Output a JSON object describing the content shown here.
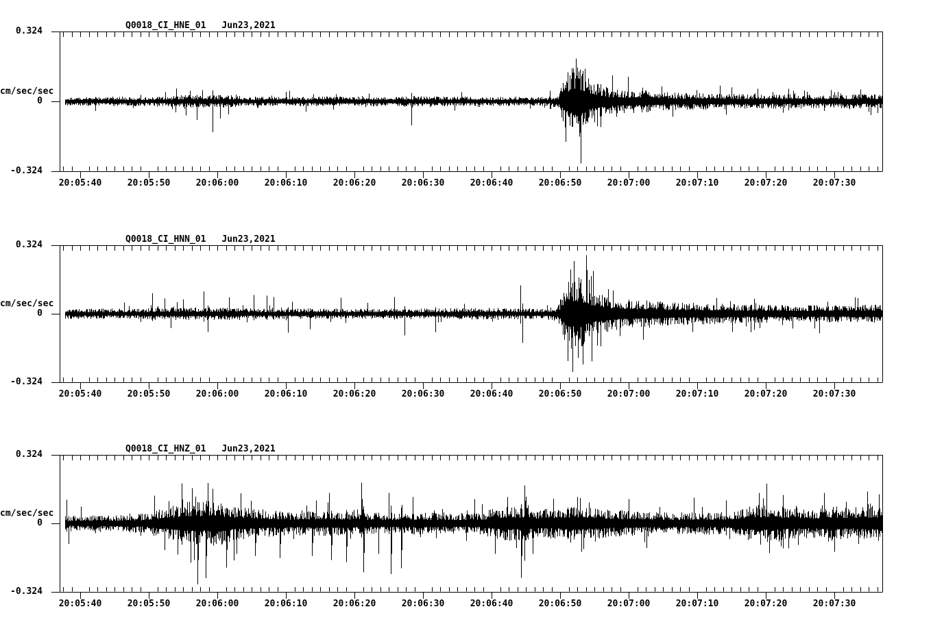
{
  "window": {
    "background": "#ffffff",
    "ink": "#000000"
  },
  "axes": {
    "y": {
      "top_label": "0.324",
      "zero_label": "0",
      "bottom_label": "-0.324",
      "units_label": "cm/sec/sec",
      "limits": [
        -0.324,
        0.324
      ]
    },
    "x": {
      "tick_labels": [
        "20:05:40",
        "20:05:50",
        "20:06:00",
        "20:06:10",
        "20:06:20",
        "20:06:30",
        "20:06:40",
        "20:06:50",
        "20:07:00",
        "20:07:10",
        "20:07:20",
        "20:07:30"
      ],
      "start_time": "20:05:37",
      "end_time": "20:07:37",
      "major_tick_interval_seconds": 10,
      "minor_ticks_per_major": 8
    }
  },
  "chart_data": [
    {
      "type": "line",
      "kind": "seismogram-trace",
      "title_station": "Q0018_CI_HNE_01",
      "title_date": "Jun23,2021",
      "channel": "HNE",
      "units": "cm/sec/sec",
      "ylim": [
        -0.324,
        0.324
      ],
      "x_start_time": "20:05:37",
      "x_end_time": "20:07:37",
      "noise_envelope": [
        [
          0,
          0.022
        ],
        [
          15,
          0.023
        ],
        [
          17,
          0.03
        ],
        [
          25,
          0.03
        ],
        [
          27,
          0.023
        ],
        [
          49,
          0.023
        ],
        [
          52,
          0.027
        ],
        [
          54,
          0.023
        ],
        [
          71,
          0.022
        ],
        [
          72.8,
          0.03
        ],
        [
          73.6,
          0.13
        ],
        [
          75.5,
          0.185
        ],
        [
          77,
          0.12
        ],
        [
          80,
          0.063
        ],
        [
          85,
          0.052
        ],
        [
          90,
          0.042
        ],
        [
          100,
          0.036
        ],
        [
          110,
          0.033
        ],
        [
          120,
          0.034
        ]
      ],
      "spikes": [
        [
          17.0,
          0.062
        ],
        [
          19.0,
          0.05
        ],
        [
          20.0,
          -0.088
        ],
        [
          22.3,
          -0.148
        ],
        [
          23.4,
          -0.082
        ],
        [
          24.6,
          -0.062
        ],
        [
          33.5,
          0.05
        ],
        [
          51.3,
          -0.115
        ],
        [
          75.3,
          0.205
        ],
        [
          75.8,
          -0.168
        ],
        [
          76.6,
          0.155
        ],
        [
          78.4,
          -0.12
        ],
        [
          87.8,
          0.072
        ],
        [
          96.3,
          0.075
        ],
        [
          101.8,
          0.06
        ],
        [
          107.0,
          0.05
        ]
      ]
    },
    {
      "type": "line",
      "kind": "seismogram-trace",
      "title_station": "Q0018_CI_HNN_01",
      "title_date": "Jun23,2021",
      "channel": "HNN",
      "units": "cm/sec/sec",
      "ylim": [
        -0.324,
        0.324
      ],
      "x_start_time": "20:05:37",
      "x_end_time": "20:07:37",
      "noise_envelope": [
        [
          0,
          0.025
        ],
        [
          12,
          0.026
        ],
        [
          14,
          0.031
        ],
        [
          26,
          0.031
        ],
        [
          28,
          0.026
        ],
        [
          54,
          0.026
        ],
        [
          58,
          0.028
        ],
        [
          66,
          0.028
        ],
        [
          70,
          0.027
        ],
        [
          72.6,
          0.032
        ],
        [
          73.6,
          0.14
        ],
        [
          75.3,
          0.2
        ],
        [
          77,
          0.14
        ],
        [
          79,
          0.095
        ],
        [
          83,
          0.07
        ],
        [
          88,
          0.06
        ],
        [
          93,
          0.052
        ],
        [
          100,
          0.046
        ],
        [
          110,
          0.042
        ],
        [
          120,
          0.046
        ]
      ],
      "spikes": [
        [
          13.5,
          0.1
        ],
        [
          15.3,
          0.075
        ],
        [
          16.2,
          -0.07
        ],
        [
          18.0,
          0.07
        ],
        [
          21.0,
          0.108
        ],
        [
          21.6,
          -0.088
        ],
        [
          24.7,
          0.08
        ],
        [
          28.3,
          0.092
        ],
        [
          30.2,
          0.088
        ],
        [
          31.2,
          0.082
        ],
        [
          33.3,
          -0.092
        ],
        [
          36.5,
          -0.075
        ],
        [
          41.0,
          0.078
        ],
        [
          48.8,
          0.082
        ],
        [
          50.3,
          -0.105
        ],
        [
          54.8,
          -0.09
        ],
        [
          67.2,
          0.138
        ],
        [
          67.5,
          -0.142
        ],
        [
          74.5,
          0.215
        ],
        [
          75.0,
          0.258
        ],
        [
          75.6,
          -0.215
        ],
        [
          76.3,
          -0.248
        ],
        [
          77.2,
          0.165
        ],
        [
          78.4,
          -0.155
        ],
        [
          80.0,
          0.12
        ],
        [
          100.8,
          -0.09
        ],
        [
          110.8,
          -0.095
        ],
        [
          116.0,
          0.08
        ]
      ]
    },
    {
      "type": "line",
      "kind": "seismogram-trace",
      "title_station": "Q0018_CI_HNZ_01",
      "title_date": "Jun23,2021",
      "channel": "HNZ",
      "units": "cm/sec/sec",
      "ylim": [
        -0.324,
        0.324
      ],
      "x_start_time": "20:05:37",
      "x_end_time": "20:07:37",
      "noise_envelope": [
        [
          0,
          0.038
        ],
        [
          8,
          0.04
        ],
        [
          12,
          0.048
        ],
        [
          16,
          0.08
        ],
        [
          18,
          0.11
        ],
        [
          23,
          0.11
        ],
        [
          26,
          0.08
        ],
        [
          30,
          0.068
        ],
        [
          34,
          0.058
        ],
        [
          38,
          0.062
        ],
        [
          42,
          0.058
        ],
        [
          47,
          0.05
        ],
        [
          52,
          0.054
        ],
        [
          58,
          0.05
        ],
        [
          62,
          0.058
        ],
        [
          64,
          0.085
        ],
        [
          68,
          0.085
        ],
        [
          70,
          0.068
        ],
        [
          73,
          0.078
        ],
        [
          76,
          0.085
        ],
        [
          80,
          0.068
        ],
        [
          85,
          0.058
        ],
        [
          90,
          0.054
        ],
        [
          98,
          0.06
        ],
        [
          101,
          0.088
        ],
        [
          104,
          0.098
        ],
        [
          106,
          0.078
        ],
        [
          110,
          0.072
        ],
        [
          112,
          0.09
        ],
        [
          115,
          0.078
        ],
        [
          118,
          0.088
        ],
        [
          120,
          0.092
        ]
      ],
      "spikes": [
        [
          1.0,
          0.115
        ],
        [
          1.3,
          -0.1
        ],
        [
          13.8,
          0.135
        ],
        [
          17.8,
          0.195
        ],
        [
          20.1,
          -0.298
        ],
        [
          21.3,
          -0.268
        ],
        [
          22.3,
          0.168
        ],
        [
          24.3,
          -0.215
        ],
        [
          25.8,
          -0.148
        ],
        [
          28.5,
          -0.158
        ],
        [
          32.1,
          -0.168
        ],
        [
          36.8,
          -0.158
        ],
        [
          39.3,
          0.148
        ],
        [
          39.6,
          -0.178
        ],
        [
          41.8,
          -0.188
        ],
        [
          44.0,
          0.198
        ],
        [
          44.3,
          -0.238
        ],
        [
          46.5,
          -0.148
        ],
        [
          48.0,
          0.148
        ],
        [
          48.3,
          -0.248
        ],
        [
          49.8,
          -0.218
        ],
        [
          51.5,
          0.128
        ],
        [
          60.5,
          0.118
        ],
        [
          63.5,
          -0.148
        ],
        [
          65.3,
          0.128
        ],
        [
          67.3,
          -0.265
        ],
        [
          67.8,
          0.185
        ],
        [
          69.0,
          -0.148
        ],
        [
          72.0,
          0.12
        ],
        [
          75.5,
          0.128
        ],
        [
          76.1,
          -0.138
        ],
        [
          83.0,
          0.118
        ],
        [
          92.5,
          0.125
        ],
        [
          102.0,
          0.148
        ],
        [
          103.5,
          -0.145
        ],
        [
          105.5,
          0.138
        ],
        [
          111.5,
          0.148
        ],
        [
          113.0,
          -0.138
        ],
        [
          117.8,
          0.155
        ],
        [
          119.5,
          0.142
        ]
      ]
    }
  ]
}
